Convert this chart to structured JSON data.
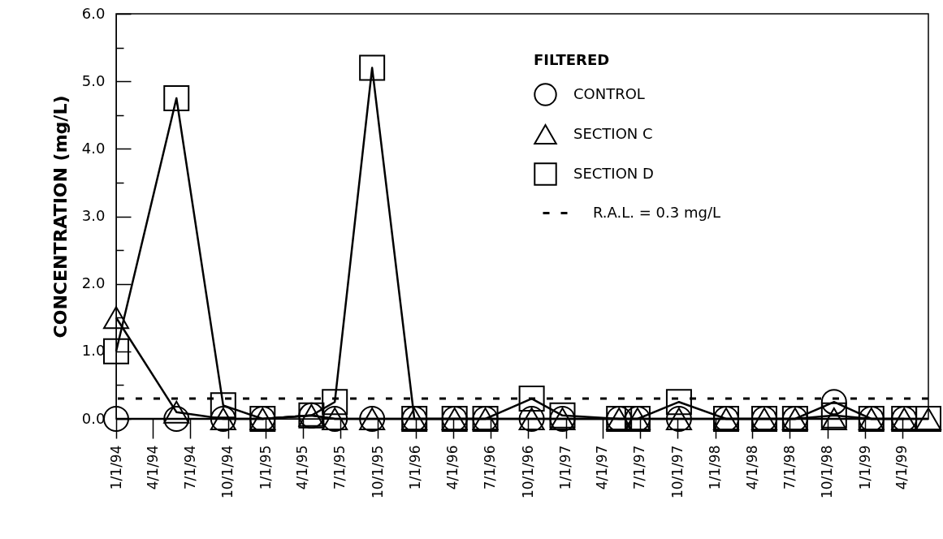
{
  "chart_data": {
    "type": "line",
    "ylabel": "CONCENTRATION (mg/L)",
    "legend_title": "FILTERED",
    "legend": "top right",
    "grid": false,
    "line_style": "solid",
    "x": [
      "1994-01-01",
      "1994-05-28",
      "1994-09-19",
      "1994-12-24",
      "1995-04-22",
      "1995-06-18",
      "1995-09-17",
      "1995-12-29",
      "1996-04-05",
      "1996-06-19",
      "1996-10-10",
      "1996-12-24",
      "1997-05-11",
      "1997-06-25",
      "1997-10-04",
      "1998-01-27",
      "1998-04-30",
      "1998-07-14",
      "1998-10-17",
      "1999-01-16",
      "1999-04-06",
      "1999-06-04"
    ],
    "series": [
      {
        "name": "CONTROL",
        "color": "#000000",
        "marker": "circle",
        "values": [
          0,
          0,
          0,
          0,
          0.05,
          0,
          0,
          0,
          0,
          0,
          0,
          0,
          0,
          0,
          0,
          0,
          0,
          0,
          0.25,
          0,
          0,
          null
        ]
      },
      {
        "name": "SECTION C",
        "color": "#000000",
        "marker": "triangle",
        "values": [
          1.5,
          0.1,
          0,
          0,
          0.05,
          0,
          0,
          0,
          0,
          0,
          0,
          0,
          0,
          0,
          0,
          0,
          0,
          0,
          0,
          0,
          0,
          0
        ]
      },
      {
        "name": "SECTION D",
        "color": "#000000",
        "marker": "square",
        "values": [
          1.0,
          4.75,
          0.2,
          0,
          0.05,
          0.25,
          5.2,
          0,
          0,
          0,
          0.3,
          0.05,
          0,
          0,
          0.25,
          0,
          0,
          0,
          0.05,
          0,
          0,
          0
        ]
      }
    ],
    "ref_lines": [
      {
        "axis": "y",
        "value": 0.3,
        "label": "R.A.L. = 0.3 mg/L",
        "line_style": "dashed",
        "color": "#000000"
      }
    ],
    "xlim": [
      "1994-01-01",
      "1999-06-04"
    ],
    "xticks": [
      {
        "value": "1994-01-01",
        "label": "1/1/94"
      },
      {
        "value": "1994-04-01",
        "label": "4/1/94"
      },
      {
        "value": "1994-07-01",
        "label": "7/1/94"
      },
      {
        "value": "1994-10-01",
        "label": "10/1/94"
      },
      {
        "value": "1995-01-01",
        "label": "1/1/95"
      },
      {
        "value": "1995-04-01",
        "label": "4/1/95"
      },
      {
        "value": "1995-07-01",
        "label": "7/1/95"
      },
      {
        "value": "1995-10-01",
        "label": "10/1/95"
      },
      {
        "value": "1996-01-01",
        "label": "1/1/96"
      },
      {
        "value": "1996-04-01",
        "label": "4/1/96"
      },
      {
        "value": "1996-07-01",
        "label": "7/1/96"
      },
      {
        "value": "1996-10-01",
        "label": "10/1/96"
      },
      {
        "value": "1997-01-01",
        "label": "1/1/97"
      },
      {
        "value": "1997-04-01",
        "label": "4/1/97"
      },
      {
        "value": "1997-07-01",
        "label": "7/1/97"
      },
      {
        "value": "1997-10-01",
        "label": "10/1/97"
      },
      {
        "value": "1998-01-01",
        "label": "1/1/98"
      },
      {
        "value": "1998-04-01",
        "label": "4/1/98"
      },
      {
        "value": "1998-07-01",
        "label": "7/1/98"
      },
      {
        "value": "1998-10-01",
        "label": "10/1/98"
      },
      {
        "value": "1999-01-01",
        "label": "1/1/99"
      },
      {
        "value": "1999-04-01",
        "label": "4/1/99"
      }
    ],
    "ylim": [
      0,
      6
    ],
    "yticks": [
      {
        "value": 0,
        "label": "0.0"
      },
      {
        "value": 0.5,
        "label": null
      },
      {
        "value": 1,
        "label": "1.0"
      },
      {
        "value": 1.5,
        "label": null
      },
      {
        "value": 2,
        "label": "2.0"
      },
      {
        "value": 2.5,
        "label": null
      },
      {
        "value": 3,
        "label": "3.0"
      },
      {
        "value": 3.5,
        "label": null
      },
      {
        "value": 4,
        "label": "4.0"
      },
      {
        "value": 4.5,
        "label": null
      },
      {
        "value": 5,
        "label": "5.0"
      },
      {
        "value": 5.5,
        "label": null
      },
      {
        "value": 6,
        "label": "6.0"
      }
    ]
  }
}
